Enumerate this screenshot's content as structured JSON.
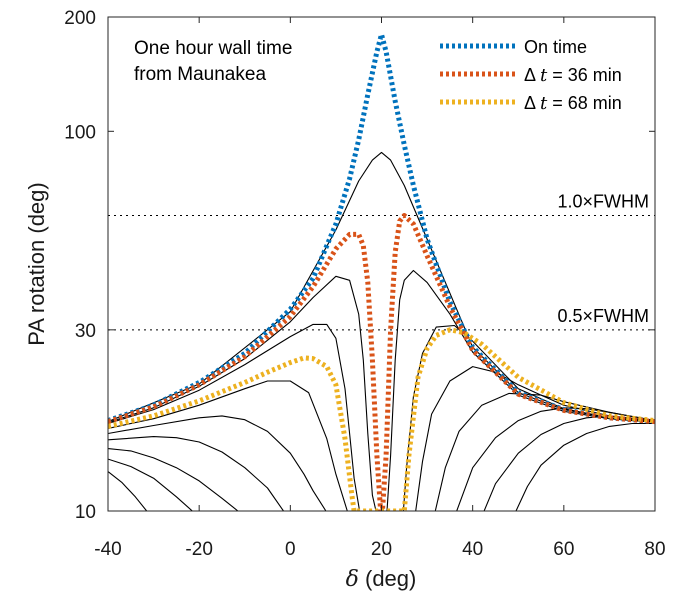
{
  "chart_data": {
    "type": "line",
    "xlabel_symbol": "δ",
    "xlabel_unit": " (deg)",
    "ylabel": "PA rotation (deg)",
    "y_scale": "log",
    "xlim": [
      -40,
      80
    ],
    "ylim": [
      10,
      200
    ],
    "x_ticks": [
      -40,
      -20,
      0,
      20,
      40,
      60,
      80
    ],
    "x_tick_labels": [
      "-40",
      "-20",
      "0",
      "20",
      "40",
      "60",
      "80"
    ],
    "y_ticks": [
      10,
      30,
      100,
      200
    ],
    "y_tick_labels": [
      "10",
      "30",
      "100",
      "200"
    ],
    "annotation_lines": [
      "One hour wall time",
      "from Maunakea"
    ],
    "reference_lines": [
      {
        "y": 60,
        "label": "1.0×FWHM",
        "style": "dotted"
      },
      {
        "y": 30,
        "label": "0.5×FWHM",
        "style": "dotted"
      }
    ],
    "legend": {
      "location": "top-right",
      "entries": [
        {
          "label": "On time",
          "color": "#0072bd",
          "style": "dotted"
        },
        {
          "label": "Δt = 36 min",
          "label_math": "Δ",
          "label_var": "t",
          "label_rest": " = 36 min",
          "color": "#d95319",
          "style": "dotted"
        },
        {
          "label": "Δt = 68 min",
          "label_math": "Δ",
          "label_var": "t",
          "label_rest": " = 68 min",
          "color": "#edb120",
          "style": "dotted"
        }
      ]
    },
    "series": [
      {
        "name": "On time",
        "color": "#0072bd",
        "style": "dotted",
        "width": 5,
        "x": [
          -40,
          -30,
          -20,
          -10,
          0,
          5,
          10,
          13,
          15,
          17,
          19,
          20,
          21,
          23,
          25,
          27,
          30,
          35,
          40,
          50,
          60,
          70,
          80
        ],
        "y": [
          17.3,
          19.0,
          21.8,
          26.0,
          34.0,
          41.0,
          57.0,
          75.0,
          95.0,
          125.0,
          162.0,
          180.0,
          162.0,
          120.0,
          92.0,
          72.0,
          52.0,
          35.5,
          27.0,
          20.5,
          18.5,
          17.6,
          17.2
        ]
      },
      {
        "name": "Δt = 36 min",
        "color": "#d95319",
        "style": "dotted",
        "width": 5,
        "x": [
          -40,
          -30,
          -20,
          -10,
          0,
          5,
          10,
          13,
          15,
          16,
          17,
          18,
          19,
          19.8,
          20.2,
          21,
          22,
          23,
          24,
          25,
          27,
          30,
          35,
          40,
          50,
          60,
          70,
          80
        ],
        "y": [
          17.2,
          18.8,
          21.5,
          25.5,
          32.5,
          39.0,
          49.0,
          53.5,
          53.5,
          50.0,
          40.0,
          25.0,
          14.0,
          10.0,
          10.0,
          14.0,
          30.0,
          48.0,
          58.0,
          60.0,
          57.0,
          47.0,
          34.5,
          26.5,
          20.3,
          18.4,
          17.6,
          17.2
        ]
      },
      {
        "name": "Δt = 68 min",
        "color": "#edb120",
        "style": "dotted",
        "width": 5,
        "x": [
          -40,
          -30,
          -20,
          -10,
          -5,
          0,
          3,
          5,
          8,
          10,
          12,
          13.5,
          14,
          25,
          26,
          28,
          30,
          32,
          35,
          38,
          42,
          50,
          60,
          70,
          80
        ],
        "y": [
          16.7,
          17.8,
          19.5,
          21.8,
          23.2,
          24.6,
          25.3,
          25.2,
          24.0,
          21.5,
          15.5,
          11.0,
          10.0,
          10.0,
          14.0,
          22.5,
          26.8,
          29.0,
          30.0,
          29.5,
          27.5,
          22.5,
          19.3,
          17.8,
          17.3
        ]
      }
    ],
    "black_curves_note_series": [
      {
        "x": [
          -40,
          -20,
          0,
          10,
          15,
          18,
          20,
          22,
          25,
          30,
          40,
          50,
          60,
          70,
          80
        ],
        "y": [
          17.2,
          21.6,
          33.5,
          55.0,
          74.0,
          84.0,
          88.0,
          84.0,
          72.0,
          52.0,
          27.0,
          20.5,
          18.5,
          17.6,
          17.2
        ]
      },
      {
        "x": [
          -40,
          -30,
          -20,
          -10,
          0,
          5,
          10,
          13,
          15,
          16,
          17,
          18,
          18.8
        ],
        "y": [
          17.1,
          18.7,
          21.3,
          25.2,
          31.5,
          36.5,
          41.5,
          40.5,
          33.0,
          25.0,
          16.0,
          11.0,
          10.0
        ]
      },
      {
        "x": [
          21.2,
          22,
          23,
          24,
          25,
          27,
          30,
          35,
          40,
          50,
          60,
          70,
          80
        ],
        "y": [
          10.0,
          14.0,
          25.0,
          36.0,
          40.5,
          43.0,
          40.0,
          33.0,
          26.2,
          20.2,
          18.3,
          17.5,
          17.1
        ]
      },
      {
        "x": [
          -40,
          -30,
          -20,
          -10,
          0,
          5,
          8,
          10,
          12,
          13,
          14,
          15.2
        ],
        "y": [
          17.0,
          18.5,
          20.8,
          24.3,
          28.8,
          31.0,
          31.0,
          28.5,
          21.0,
          16.0,
          12.2,
          10.0
        ]
      },
      {
        "x": [
          24.8,
          25.5,
          27,
          29,
          32,
          36,
          40,
          50,
          60,
          70,
          80
        ],
        "y": [
          10.0,
          13.0,
          20.0,
          26.0,
          30.5,
          30.8,
          28.0,
          21.0,
          18.6,
          17.6,
          17.1
        ]
      },
      {
        "x": [
          -40,
          -30,
          -20,
          -10,
          -5,
          0,
          4,
          8,
          10,
          12.5
        ],
        "y": [
          16.5,
          17.5,
          19.0,
          21.0,
          22.0,
          22.0,
          20.5,
          15.5,
          12.5,
          10.0
        ]
      },
      {
        "x": [
          27.5,
          29,
          31,
          35,
          40,
          45,
          50,
          55,
          60,
          70,
          80
        ],
        "y": [
          10.0,
          13.5,
          18.0,
          22.0,
          24.0,
          23.2,
          21.5,
          20.2,
          19.0,
          17.8,
          17.2
        ]
      },
      {
        "x": [
          -40,
          -30,
          -20,
          -15,
          -10,
          -5,
          0,
          3,
          5,
          7.8
        ],
        "y": [
          16.0,
          16.8,
          17.6,
          17.8,
          17.4,
          16.2,
          14.2,
          12.5,
          11.3,
          10.0
        ]
      },
      {
        "x": [
          31.8,
          34,
          37,
          42,
          48,
          55,
          60,
          70,
          80
        ],
        "y": [
          10.0,
          13.0,
          16.2,
          19.0,
          20.4,
          20.2,
          19.4,
          18.2,
          17.3
        ]
      },
      {
        "x": [
          -40,
          -30,
          -25,
          -20,
          -15,
          -10,
          -5,
          -1.5
        ],
        "y": [
          15.4,
          15.7,
          15.6,
          15.2,
          14.3,
          13.0,
          11.5,
          10.0
        ]
      },
      {
        "x": [
          36.5,
          40,
          45,
          50,
          55,
          60,
          65,
          70,
          80
        ],
        "y": [
          10.0,
          13.0,
          15.6,
          17.3,
          18.3,
          18.7,
          18.6,
          18.2,
          17.3
        ]
      },
      {
        "x": [
          -40,
          -35,
          -30,
          -25,
          -20,
          -15,
          -11.5
        ],
        "y": [
          14.6,
          14.4,
          13.8,
          13.0,
          12.0,
          10.8,
          10.0
        ]
      },
      {
        "x": [
          42.5,
          45,
          50,
          55,
          60,
          65,
          70,
          80
        ],
        "y": [
          10.0,
          11.8,
          14.2,
          15.9,
          17.0,
          17.6,
          17.8,
          17.3
        ]
      },
      {
        "x": [
          -40,
          -35,
          -30,
          -25,
          -21.5
        ],
        "y": [
          13.7,
          13.1,
          12.2,
          10.9,
          10.0
        ]
      },
      {
        "x": [
          49.5,
          52,
          55,
          60,
          65,
          70,
          75,
          80
        ],
        "y": [
          10.0,
          11.6,
          13.2,
          14.9,
          16.0,
          16.7,
          17.0,
          17.0
        ]
      },
      {
        "x": [
          -40,
          -37,
          -34,
          -31.5
        ],
        "y": [
          12.7,
          11.9,
          10.9,
          10.0
        ]
      }
    ]
  }
}
